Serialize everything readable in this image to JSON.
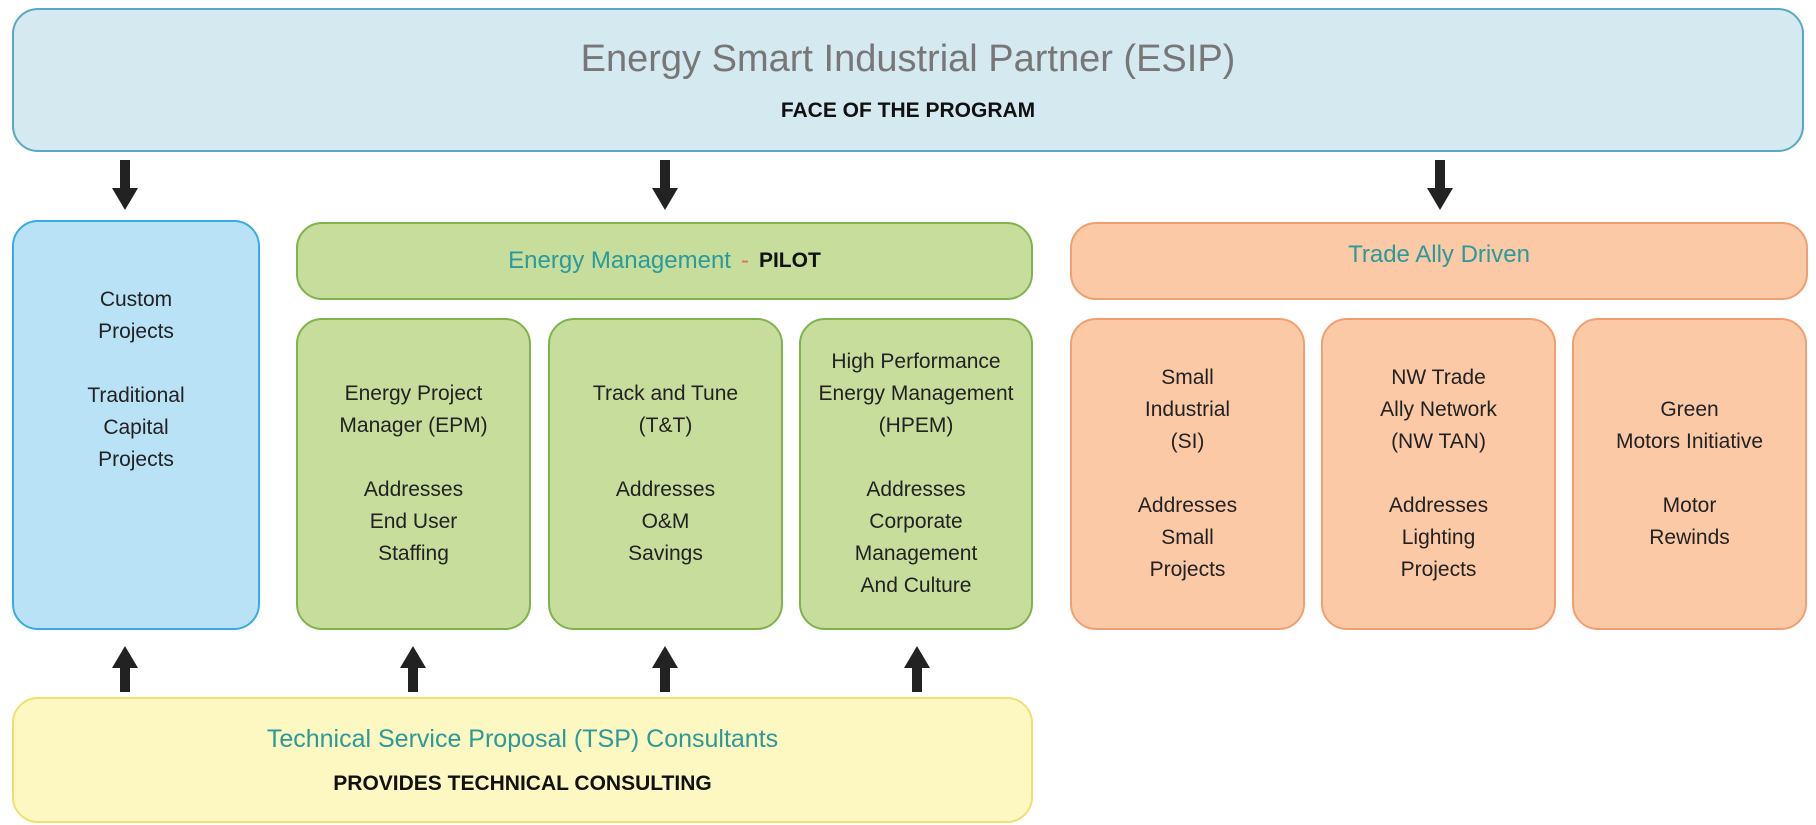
{
  "header": {
    "title": "Energy Smart Industrial Partner (ESIP)",
    "subtitle": "FACE OF THE PROGRAM"
  },
  "custom": {
    "paragraphs": [
      [
        "Custom",
        "Projects"
      ],
      [
        "Traditional",
        "Capital",
        "Projects"
      ]
    ]
  },
  "energy_management": {
    "label": "Energy Management",
    "separator": "-",
    "tag": "PILOT",
    "boxes": [
      {
        "paragraphs": [
          [
            "Energy Project",
            "Manager (EPM)"
          ],
          [
            "Addresses",
            "End User",
            "Staffing"
          ]
        ]
      },
      {
        "paragraphs": [
          [
            "Track and Tune",
            "(T&T)"
          ],
          [
            "Addresses",
            "O&M",
            "Savings"
          ]
        ]
      },
      {
        "paragraphs": [
          [
            "High Performance",
            "Energy Management",
            "(HPEM)"
          ],
          [
            "Addresses",
            "Corporate",
            "Management",
            "And Culture"
          ]
        ]
      }
    ]
  },
  "trade_ally": {
    "label": "Trade Ally Driven",
    "boxes": [
      {
        "paragraphs": [
          [
            "Small",
            "Industrial",
            "(SI)"
          ],
          [
            "Addresses",
            "Small",
            "Projects"
          ]
        ]
      },
      {
        "paragraphs": [
          [
            "NW Trade",
            "Ally Network",
            "(NW TAN)"
          ],
          [
            "Addresses",
            "Lighting",
            "Projects"
          ]
        ]
      },
      {
        "paragraphs": [
          [
            "Green",
            "Motors Initiative"
          ],
          [
            "Motor",
            "Rewinds"
          ]
        ]
      }
    ]
  },
  "tsp": {
    "title": "Technical Service Proposal (TSP) Consultants",
    "subtitle": "PROVIDES TECHNICAL CONSULTING"
  }
}
